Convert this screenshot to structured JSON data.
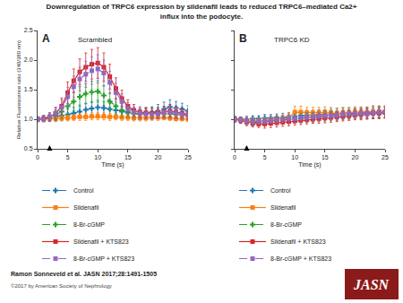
{
  "title": [
    "Downregulation of TRPC6 expression by sildenafil leads to reduced TRPC6–mediated Ca2+",
    "influx into the podocyte."
  ],
  "annotations": [
    {
      "text": "Ramon Sonneveld et al. JASN 2017;28:1491-1505"
    },
    {
      "text": "©2017 by American Society of Nephrology",
      "color": "#444444"
    },
    {
      "text": "JASN",
      "colors": [
        "#8B1A1A",
        "#ffffff"
      ]
    }
  ],
  "chart_data": [
    {
      "type": "line",
      "title": "Scrambled",
      "annotations": [
        "A"
      ],
      "arrow": {
        "x": 2,
        "y_start": 0.5,
        "y_end": 0.56
      },
      "xlabel": "Time (s)",
      "ylabel": "Relative Fluorescence ratio (340/380 nm)",
      "x": [
        0,
        1,
        2,
        3,
        4,
        5,
        6,
        7,
        8,
        9,
        10,
        11,
        12,
        13,
        14,
        15,
        16,
        17,
        18,
        19,
        20,
        21,
        22,
        23,
        24,
        25
      ],
      "xlim": [
        0,
        25
      ],
      "xticks": [
        0,
        5,
        10,
        15,
        20,
        25
      ],
      "ylim": [
        0.5,
        2.5
      ],
      "yticks": [
        0.5,
        {
          "value": 1.0,
          "label": "1.0"
        },
        1.5,
        {
          "value": 2.0,
          "label": "2.0"
        },
        2.5
      ],
      "grid": false,
      "legend": "bottom",
      "series": [
        {
          "name": "Control",
          "marker": "plus",
          "line_style": "dashed",
          "values": [
            1.0,
            1.01,
            1.02,
            1.04,
            1.06,
            1.08,
            1.1,
            1.13,
            1.16,
            1.18,
            1.2,
            1.19,
            1.17,
            1.15,
            1.13,
            1.11,
            1.1,
            1.09,
            1.1,
            1.11,
            1.14,
            1.17,
            1.21,
            1.19,
            1.17,
            1.14
          ],
          "errors": [
            0.04,
            0.05,
            0.06,
            0.07,
            0.08,
            0.09,
            0.1,
            0.11,
            0.11,
            0.12,
            0.12,
            0.11,
            0.1,
            0.09,
            0.09,
            0.08,
            0.08,
            0.08,
            0.09,
            0.1,
            0.11,
            0.12,
            0.12,
            0.11,
            0.1,
            0.09
          ]
        },
        {
          "name": "Sildenafil",
          "marker": "square",
          "line_style": "solid",
          "values": [
            1.0,
            1.0,
            1.01,
            1.01,
            1.02,
            1.02,
            1.03,
            1.04,
            1.04,
            1.05,
            1.05,
            1.05,
            1.04,
            1.04,
            1.03,
            1.03,
            1.02,
            1.02,
            1.02,
            1.03,
            1.03,
            1.03,
            1.02,
            1.01,
            1.01,
            1.0
          ],
          "errors": [
            0.04,
            0.04,
            0.04,
            0.05,
            0.05,
            0.05,
            0.05,
            0.06,
            0.06,
            0.06,
            0.06,
            0.06,
            0.06,
            0.05,
            0.05,
            0.05,
            0.05,
            0.05,
            0.05,
            0.05,
            0.05,
            0.04,
            0.04,
            0.04,
            0.04,
            0.04
          ]
        },
        {
          "name": "8-Br-cGMP",
          "marker": "plus",
          "line_style": "dashed",
          "values": [
            1.0,
            1.01,
            1.03,
            1.07,
            1.13,
            1.22,
            1.3,
            1.38,
            1.43,
            1.46,
            1.47,
            1.4,
            1.3,
            1.22,
            1.15,
            1.12,
            1.1,
            1.09,
            1.1,
            1.11,
            1.1,
            1.1,
            1.09,
            1.08,
            1.08,
            1.07
          ],
          "errors": [
            0.04,
            0.05,
            0.06,
            0.09,
            0.12,
            0.14,
            0.16,
            0.17,
            0.17,
            0.18,
            0.18,
            0.17,
            0.15,
            0.13,
            0.11,
            0.09,
            0.08,
            0.08,
            0.08,
            0.08,
            0.08,
            0.07,
            0.07,
            0.07,
            0.07,
            0.06
          ]
        },
        {
          "name": "Sildenafil + KTS823",
          "marker": "square",
          "line_style": "solid",
          "values": [
            1.0,
            1.01,
            1.04,
            1.1,
            1.22,
            1.45,
            1.65,
            1.8,
            1.88,
            1.93,
            1.95,
            1.88,
            1.72,
            1.52,
            1.35,
            1.22,
            1.15,
            1.12,
            1.11,
            1.1,
            1.11,
            1.12,
            1.14,
            1.12,
            1.1,
            1.08
          ],
          "errors": [
            0.04,
            0.05,
            0.07,
            0.1,
            0.14,
            0.18,
            0.2,
            0.22,
            0.24,
            0.25,
            0.26,
            0.24,
            0.21,
            0.18,
            0.14,
            0.11,
            0.1,
            0.09,
            0.09,
            0.09,
            0.09,
            0.1,
            0.11,
            0.1,
            0.09,
            0.08
          ]
        },
        {
          "name": "8-Br-cGMP + KTS823",
          "marker": "square",
          "line_style": "dashed",
          "values": [
            1.0,
            1.01,
            1.04,
            1.1,
            1.2,
            1.38,
            1.55,
            1.68,
            1.76,
            1.82,
            1.85,
            1.78,
            1.62,
            1.45,
            1.3,
            1.18,
            1.12,
            1.1,
            1.09,
            1.08,
            1.09,
            1.11,
            1.12,
            1.1,
            1.08,
            1.07
          ],
          "errors": [
            0.04,
            0.05,
            0.07,
            0.1,
            0.13,
            0.16,
            0.18,
            0.2,
            0.22,
            0.23,
            0.24,
            0.22,
            0.19,
            0.16,
            0.13,
            0.1,
            0.09,
            0.08,
            0.08,
            0.08,
            0.08,
            0.09,
            0.1,
            0.09,
            0.08,
            0.07
          ]
        }
      ]
    },
    {
      "type": "line",
      "title": "TRPC6 KD",
      "annotations": [
        "B"
      ],
      "arrow": {
        "x": 2,
        "y_start": 0.5,
        "y_end": 0.56
      },
      "xlabel": "Time (s)",
      "x": [
        0,
        1,
        2,
        3,
        4,
        5,
        6,
        7,
        8,
        9,
        10,
        11,
        12,
        13,
        14,
        15,
        16,
        17,
        18,
        19,
        20,
        21,
        22,
        23,
        24,
        25
      ],
      "xlim": [
        0,
        25
      ],
      "xticks": [
        0,
        5,
        10,
        15,
        20,
        25
      ],
      "ylim": [
        0.5,
        2.5
      ],
      "yticks": [
        0.5,
        {
          "value": 1.0,
          "label": "1.0"
        },
        1.5,
        {
          "value": 2.0,
          "label": "2.0"
        },
        2.5
      ],
      "tick_labels": "x",
      "grid": false,
      "legend": "bottom",
      "series": [
        {
          "name": "Control",
          "marker": "plus",
          "line_style": "dashed",
          "values": [
            1.0,
            1.0,
            1.0,
            1.01,
            1.01,
            1.02,
            1.02,
            1.03,
            1.03,
            1.04,
            1.05,
            1.06,
            1.07,
            1.07,
            1.08,
            1.08,
            1.09,
            1.09,
            1.1,
            1.1,
            1.1,
            1.11,
            1.11,
            1.12,
            1.12,
            1.12
          ],
          "errors": [
            0.04,
            0.04,
            0.05,
            0.05,
            0.05,
            0.06,
            0.06,
            0.06,
            0.07,
            0.07,
            0.07,
            0.08,
            0.08,
            0.08,
            0.08,
            0.08,
            0.08,
            0.09,
            0.09,
            0.09,
            0.09,
            0.09,
            0.09,
            0.1,
            0.1,
            0.1
          ]
        },
        {
          "name": "Sildenafil",
          "marker": "square",
          "line_style": "solid",
          "values": [
            1.0,
            0.99,
            0.98,
            0.97,
            0.97,
            0.98,
            0.99,
            1.0,
            1.01,
            1.03,
            1.12,
            1.12,
            1.11,
            1.11,
            1.11,
            1.12,
            1.11,
            1.1,
            1.11,
            1.11,
            1.12,
            1.12,
            1.12,
            1.13,
            1.13,
            1.13
          ],
          "errors": [
            0.04,
            0.04,
            0.05,
            0.05,
            0.05,
            0.05,
            0.06,
            0.06,
            0.06,
            0.07,
            0.1,
            0.1,
            0.09,
            0.09,
            0.09,
            0.09,
            0.09,
            0.09,
            0.09,
            0.09,
            0.09,
            0.09,
            0.09,
            0.1,
            0.1,
            0.1
          ]
        },
        {
          "name": "8-Br-cGMP",
          "marker": "plus",
          "line_style": "dashed",
          "values": [
            1.0,
            0.98,
            0.96,
            0.95,
            0.95,
            0.96,
            0.97,
            0.98,
            0.99,
            1.0,
            1.01,
            1.02,
            1.03,
            1.03,
            1.04,
            1.05,
            1.06,
            1.06,
            1.07,
            1.08,
            1.09,
            1.09,
            1.1,
            1.1,
            1.11,
            1.11
          ],
          "errors": [
            0.05,
            0.05,
            0.05,
            0.06,
            0.06,
            0.06,
            0.06,
            0.06,
            0.06,
            0.07,
            0.07,
            0.08,
            0.08,
            0.08,
            0.08,
            0.08,
            0.08,
            0.08,
            0.08,
            0.08,
            0.08,
            0.08,
            0.09,
            0.09,
            0.09,
            0.09
          ]
        },
        {
          "name": "Sildenafil + KTS823",
          "marker": "square",
          "line_style": "solid",
          "values": [
            1.0,
            0.98,
            0.95,
            0.93,
            0.92,
            0.92,
            0.93,
            0.94,
            0.95,
            0.96,
            0.97,
            0.98,
            0.99,
            1.0,
            1.01,
            1.02,
            1.03,
            1.04,
            1.05,
            1.06,
            1.07,
            1.08,
            1.09,
            1.1,
            1.1,
            1.11
          ],
          "errors": [
            0.05,
            0.05,
            0.06,
            0.06,
            0.06,
            0.07,
            0.07,
            0.07,
            0.07,
            0.07,
            0.07,
            0.07,
            0.07,
            0.07,
            0.08,
            0.08,
            0.08,
            0.08,
            0.08,
            0.08,
            0.08,
            0.09,
            0.09,
            0.09,
            0.09,
            0.09
          ]
        },
        {
          "name": "8-Br-cGMP + KTS823",
          "marker": "square",
          "line_style": "dashed",
          "values": [
            1.0,
            0.99,
            0.97,
            0.96,
            0.96,
            0.97,
            0.98,
            0.99,
            1.0,
            1.01,
            1.01,
            1.02,
            1.03,
            1.04,
            1.05,
            1.06,
            1.06,
            1.07,
            1.08,
            1.09,
            1.09,
            1.1,
            1.1,
            1.11,
            1.12,
            1.12
          ],
          "errors": [
            0.04,
            0.04,
            0.05,
            0.05,
            0.05,
            0.05,
            0.05,
            0.06,
            0.06,
            0.06,
            0.07,
            0.07,
            0.07,
            0.07,
            0.07,
            0.07,
            0.07,
            0.07,
            0.07,
            0.07,
            0.08,
            0.08,
            0.08,
            0.08,
            0.08,
            0.08
          ]
        }
      ]
    }
  ]
}
